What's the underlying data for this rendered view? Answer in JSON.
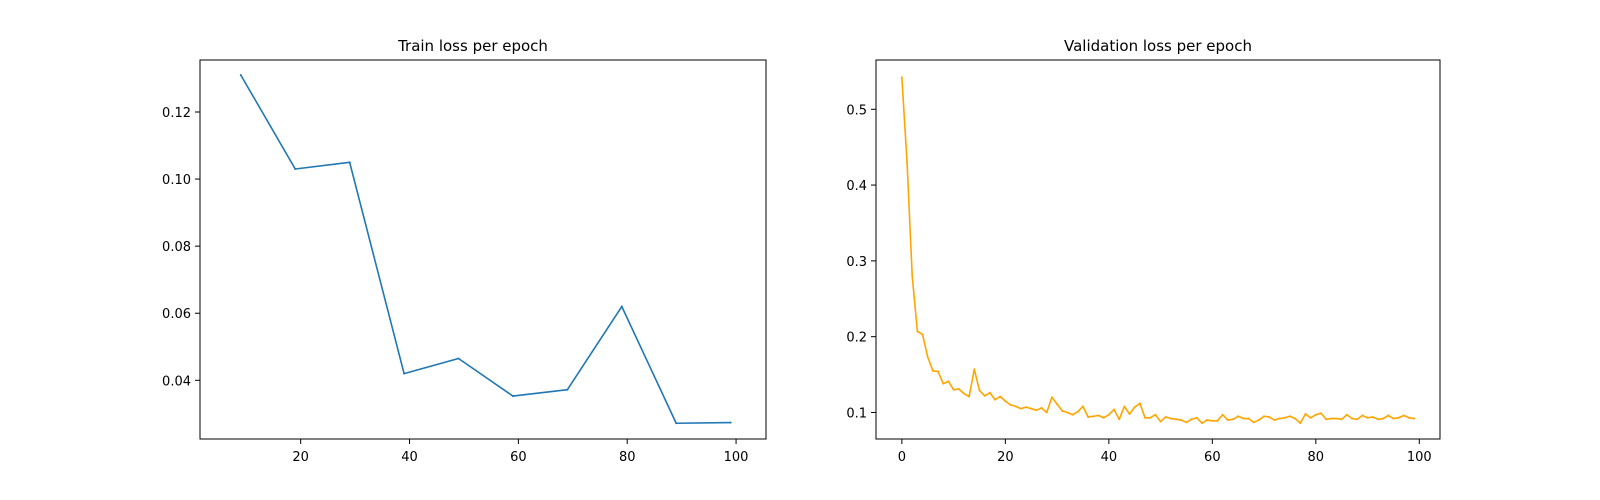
{
  "colors": {
    "train": "#1f77b4",
    "validation": "#ffa500"
  },
  "chart_data": [
    {
      "type": "line",
      "title": "Train loss per epoch",
      "xlabel": "",
      "ylabel": "",
      "xlim": [
        1.5,
        105.5
      ],
      "ylim": [
        0.0225,
        0.1355
      ],
      "xticks": [
        20,
        40,
        60,
        80,
        100
      ],
      "yticks": [
        0.04,
        0.06,
        0.08,
        0.1,
        0.12
      ],
      "xtick_labels": [
        "20",
        "40",
        "60",
        "80",
        "100"
      ],
      "ytick_labels": [
        "0.04",
        "0.06",
        "0.08",
        "0.10",
        "0.12"
      ],
      "grid": false,
      "series": [
        {
          "color": "#1f77b4",
          "x": [
            9,
            19,
            29,
            39,
            49,
            59,
            69,
            79,
            89,
            99
          ],
          "y": [
            0.131,
            0.103,
            0.105,
            0.042,
            0.0465,
            0.0353,
            0.0372,
            0.062,
            0.0272,
            0.0274
          ]
        }
      ]
    },
    {
      "type": "line",
      "title": "Validation loss per epoch",
      "xlabel": "",
      "ylabel": "",
      "xlim": [
        -5,
        104
      ],
      "ylim": [
        0.065,
        0.565
      ],
      "xticks": [
        0,
        20,
        40,
        60,
        80,
        100
      ],
      "yticks": [
        0.1,
        0.2,
        0.3,
        0.4,
        0.5
      ],
      "xtick_labels": [
        "0",
        "20",
        "40",
        "60",
        "80",
        "100"
      ],
      "ytick_labels": [
        "0.1",
        "0.2",
        "0.3",
        "0.4",
        "0.5"
      ],
      "grid": false,
      "series": [
        {
          "color": "#ffa500",
          "x": [
            0,
            1,
            2,
            3,
            4,
            5,
            6,
            7,
            8,
            9,
            10,
            11,
            12,
            13,
            14,
            15,
            16,
            17,
            18,
            19,
            20,
            21,
            22,
            23,
            24,
            25,
            26,
            27,
            28,
            29,
            30,
            31,
            32,
            33,
            34,
            35,
            36,
            37,
            38,
            39,
            40,
            41,
            42,
            43,
            44,
            45,
            46,
            47,
            48,
            49,
            50,
            51,
            52,
            53,
            54,
            55,
            56,
            57,
            58,
            59,
            60,
            61,
            62,
            63,
            64,
            65,
            66,
            67,
            68,
            69,
            70,
            71,
            72,
            73,
            74,
            75,
            76,
            77,
            78,
            79,
            80,
            81,
            82,
            83,
            84,
            85,
            86,
            87,
            88,
            89,
            90,
            91,
            92,
            93,
            94,
            95,
            96,
            97,
            98,
            99
          ],
          "y": [
            0.542,
            0.43,
            0.28,
            0.207,
            0.203,
            0.173,
            0.155,
            0.154,
            0.138,
            0.141,
            0.13,
            0.131,
            0.125,
            0.121,
            0.157,
            0.129,
            0.122,
            0.126,
            0.117,
            0.121,
            0.115,
            0.11,
            0.108,
            0.105,
            0.107,
            0.105,
            0.103,
            0.106,
            0.1,
            0.12,
            0.111,
            0.102,
            0.1,
            0.097,
            0.101,
            0.108,
            0.094,
            0.095,
            0.096,
            0.093,
            0.097,
            0.104,
            0.091,
            0.108,
            0.098,
            0.107,
            0.112,
            0.093,
            0.093,
            0.097,
            0.088,
            0.094,
            0.092,
            0.091,
            0.09,
            0.087,
            0.091,
            0.093,
            0.086,
            0.09,
            0.089,
            0.089,
            0.097,
            0.09,
            0.091,
            0.095,
            0.092,
            0.092,
            0.087,
            0.09,
            0.095,
            0.094,
            0.09,
            0.092,
            0.093,
            0.095,
            0.092,
            0.086,
            0.098,
            0.093,
            0.097,
            0.099,
            0.091,
            0.092,
            0.092,
            0.091,
            0.097,
            0.092,
            0.091,
            0.096,
            0.093,
            0.094,
            0.091,
            0.092,
            0.096,
            0.092,
            0.093,
            0.096,
            0.093,
            0.092
          ]
        }
      ]
    }
  ]
}
